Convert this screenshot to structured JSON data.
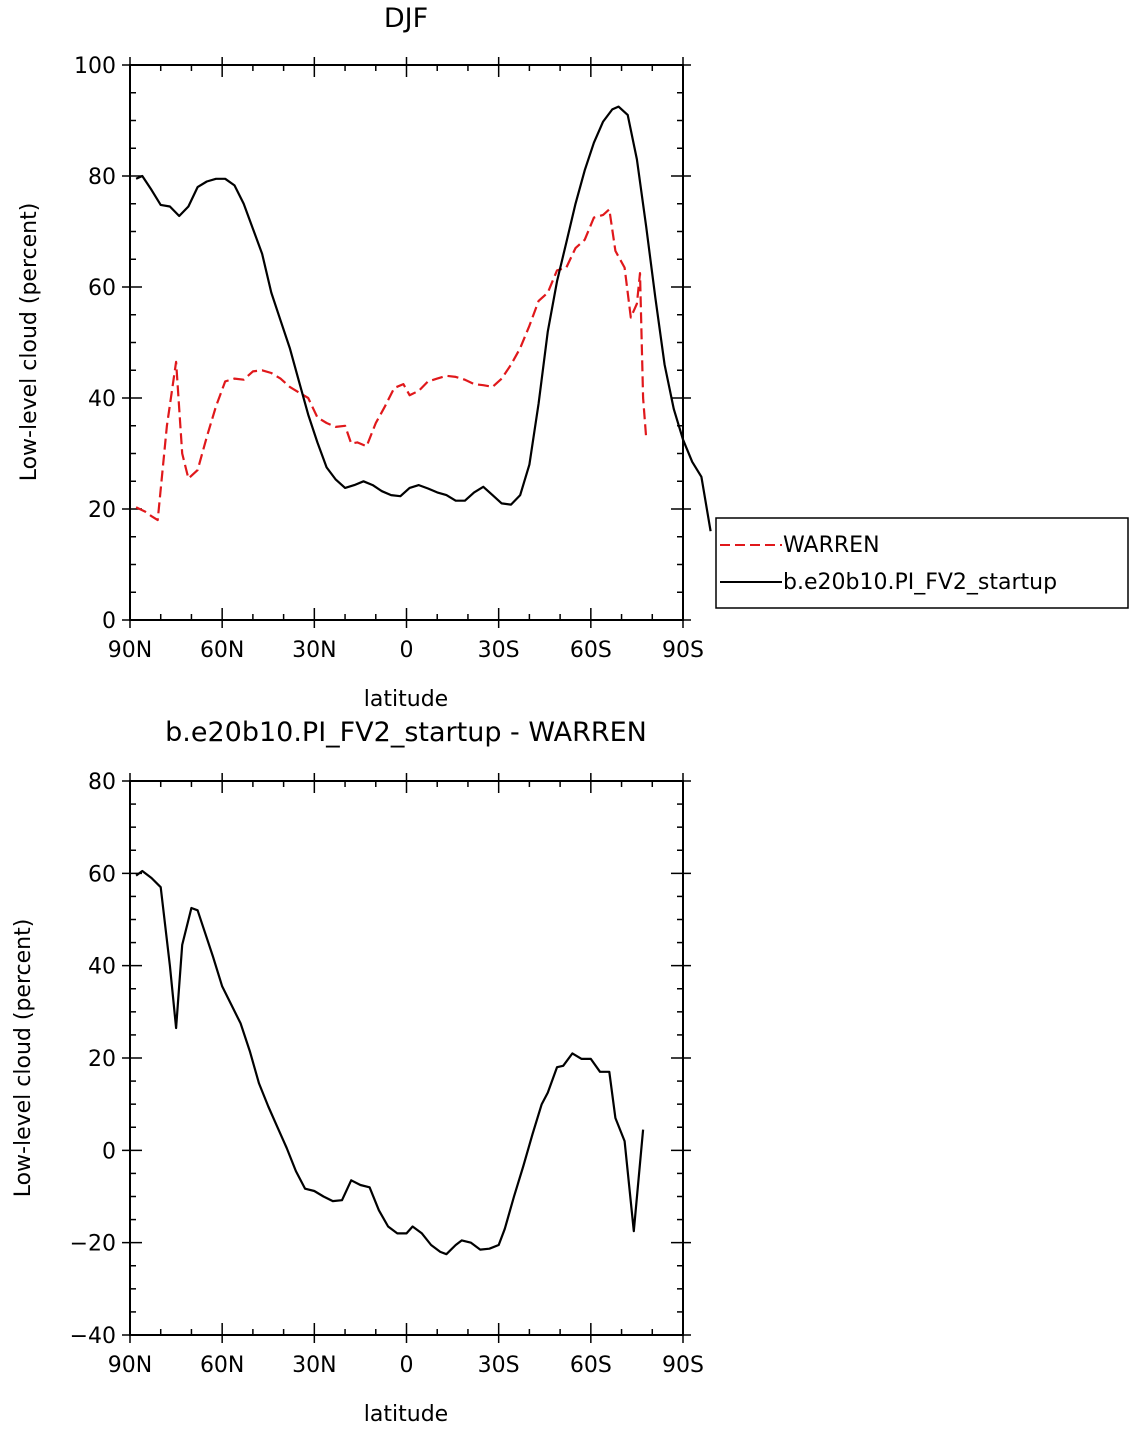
{
  "chart_data": [
    {
      "type": "line",
      "title": "DJF",
      "xlabel": "latitude",
      "ylabel": "Low-level cloud (percent)",
      "xlim": [
        -90,
        90
      ],
      "ylim": [
        0,
        100
      ],
      "xticks": [
        -90,
        -60,
        -30,
        0,
        30,
        60,
        90
      ],
      "xtick_labels": [
        "90N",
        "60N",
        "30N",
        "0",
        "30S",
        "60S",
        "90S"
      ],
      "yticks": [
        0,
        20,
        40,
        60,
        80,
        100
      ],
      "ytick_labels": [
        "0",
        "20",
        "40",
        "60",
        "80",
        "100"
      ],
      "grid": false,
      "legend": {
        "placement": "outside-right",
        "entries": [
          "WARREN",
          "b.e20b10.PI_FV2_startup"
        ]
      },
      "series": [
        {
          "name": "WARREN",
          "color": "#e0181b",
          "dash": "dashed",
          "points": [
            [
              -88,
              20.3
            ],
            [
              -85,
              19.5
            ],
            [
              -83,
              18.7
            ],
            [
              -81,
              18.0
            ],
            [
              -78,
              35.0
            ],
            [
              -75,
              46.5
            ],
            [
              -73,
              30.0
            ],
            [
              -71,
              25.5
            ],
            [
              -68,
              27.0
            ],
            [
              -65,
              33.0
            ],
            [
              -62,
              38.5
            ],
            [
              -59,
              43.0
            ],
            [
              -56,
              43.5
            ],
            [
              -53,
              43.3
            ],
            [
              -50,
              44.8
            ],
            [
              -47,
              45.0
            ],
            [
              -44,
              44.5
            ],
            [
              -41,
              43.5
            ],
            [
              -38,
              42.0
            ],
            [
              -35,
              41.0
            ],
            [
              -32,
              40.0
            ],
            [
              -29,
              36.5
            ],
            [
              -26,
              35.5
            ],
            [
              -23,
              34.8
            ],
            [
              -20,
              35.0
            ],
            [
              -18,
              31.8
            ],
            [
              -16,
              32.0
            ],
            [
              -13,
              31.3
            ],
            [
              -10,
              35.5
            ],
            [
              -7,
              38.5
            ],
            [
              -4,
              41.8
            ],
            [
              -1,
              42.5
            ],
            [
              1,
              40.5
            ],
            [
              4,
              41.3
            ],
            [
              7,
              43.0
            ],
            [
              10,
              43.5
            ],
            [
              13,
              44.0
            ],
            [
              16,
              43.8
            ],
            [
              19,
              43.3
            ],
            [
              22,
              42.5
            ],
            [
              25,
              42.3
            ],
            [
              28,
              42.0
            ],
            [
              31,
              43.5
            ],
            [
              34,
              46.0
            ],
            [
              37,
              49.0
            ],
            [
              40,
              53.0
            ],
            [
              43,
              57.5
            ],
            [
              46,
              59.0
            ],
            [
              49,
              63.0
            ],
            [
              52,
              63.5
            ],
            [
              55,
              67.0
            ],
            [
              58,
              68.5
            ],
            [
              61,
              72.5
            ],
            [
              64,
              73.0
            ],
            [
              66,
              74.0
            ],
            [
              68,
              66.5
            ],
            [
              71,
              63.5
            ],
            [
              73,
              54.5
            ],
            [
              75,
              57.0
            ],
            [
              76,
              62.5
            ],
            [
              77,
              40.0
            ],
            [
              78,
              33.0
            ]
          ]
        },
        {
          "name": "b.e20b10.PI_FV2_startup",
          "color": "#000000",
          "dash": "solid",
          "points": [
            [
              -88,
              79.5
            ],
            [
              -86,
              80.0
            ],
            [
              -83,
              77.5
            ],
            [
              -80,
              74.8
            ],
            [
              -77,
              74.5
            ],
            [
              -74,
              72.8
            ],
            [
              -71,
              74.5
            ],
            [
              -68,
              78.0
            ],
            [
              -65,
              79.0
            ],
            [
              -62,
              79.5
            ],
            [
              -59,
              79.5
            ],
            [
              -56,
              78.3
            ],
            [
              -53,
              75.0
            ],
            [
              -50,
              70.5
            ],
            [
              -47,
              66.0
            ],
            [
              -44,
              59.0
            ],
            [
              -41,
              54.0
            ],
            [
              -38,
              49.0
            ],
            [
              -35,
              43.0
            ],
            [
              -32,
              37.0
            ],
            [
              -29,
              32.0
            ],
            [
              -26,
              27.5
            ],
            [
              -23,
              25.3
            ],
            [
              -20,
              23.8
            ],
            [
              -17,
              24.3
            ],
            [
              -14,
              25.0
            ],
            [
              -11,
              24.3
            ],
            [
              -8,
              23.2
            ],
            [
              -5,
              22.5
            ],
            [
              -2,
              22.3
            ],
            [
              1,
              23.8
            ],
            [
              4,
              24.3
            ],
            [
              7,
              23.7
            ],
            [
              10,
              23.0
            ],
            [
              13,
              22.5
            ],
            [
              16,
              21.5
            ],
            [
              19,
              21.5
            ],
            [
              22,
              23.0
            ],
            [
              25,
              24.0
            ],
            [
              28,
              22.5
            ],
            [
              31,
              21.0
            ],
            [
              34,
              20.8
            ],
            [
              37,
              22.5
            ],
            [
              40,
              28.0
            ],
            [
              43,
              39.0
            ],
            [
              46,
              52.0
            ],
            [
              49,
              61.0
            ],
            [
              52,
              68.0
            ],
            [
              55,
              75.0
            ],
            [
              58,
              81.0
            ],
            [
              61,
              86.0
            ],
            [
              64,
              89.8
            ],
            [
              67,
              92.0
            ],
            [
              69,
              92.5
            ],
            [
              72,
              91.0
            ],
            [
              75,
              83.0
            ],
            [
              78,
              71.0
            ],
            [
              81,
              58.0
            ],
            [
              84,
              46.0
            ],
            [
              87,
              38.0
            ],
            [
              90,
              32.5
            ],
            [
              93,
              28.5
            ],
            [
              96,
              25.8
            ],
            [
              99,
              16.0
            ]
          ]
        }
      ]
    },
    {
      "type": "line",
      "title": "b.e20b10.PI_FV2_startup - WARREN",
      "xlabel": "latitude",
      "ylabel": "Low-level cloud (percent)",
      "xlim": [
        -90,
        90
      ],
      "ylim": [
        -40,
        80
      ],
      "xticks": [
        -90,
        -60,
        -30,
        0,
        30,
        60,
        90
      ],
      "xtick_labels": [
        "90N",
        "60N",
        "30N",
        "0",
        "30S",
        "60S",
        "90S"
      ],
      "yticks": [
        -40,
        -20,
        0,
        20,
        40,
        60,
        80
      ],
      "ytick_labels": [
        "−40",
        "−20",
        "0",
        "20",
        "40",
        "60",
        "80"
      ],
      "grid": false,
      "series": [
        {
          "color": "#000000",
          "dash": "solid",
          "points": [
            [
              -88,
              59.5
            ],
            [
              -86,
              60.5
            ],
            [
              -83,
              59.0
            ],
            [
              -80,
              57.0
            ],
            [
              -77,
              40.0
            ],
            [
              -75,
              26.5
            ],
            [
              -73,
              44.5
            ],
            [
              -70,
              52.5
            ],
            [
              -68,
              52.0
            ],
            [
              -66,
              48.0
            ],
            [
              -63,
              42.0
            ],
            [
              -60,
              35.5
            ],
            [
              -57,
              31.5
            ],
            [
              -54,
              27.5
            ],
            [
              -51,
              21.5
            ],
            [
              -48,
              14.5
            ],
            [
              -45,
              9.5
            ],
            [
              -42,
              5.0
            ],
            [
              -39,
              0.5
            ],
            [
              -36,
              -4.5
            ],
            [
              -33,
              -8.3
            ],
            [
              -30,
              -8.8
            ],
            [
              -27,
              -10.0
            ],
            [
              -24,
              -11.0
            ],
            [
              -21,
              -10.8
            ],
            [
              -18,
              -6.5
            ],
            [
              -15,
              -7.5
            ],
            [
              -12,
              -8.0
            ],
            [
              -9,
              -13.0
            ],
            [
              -6,
              -16.5
            ],
            [
              -3,
              -18.0
            ],
            [
              0,
              -18.0
            ],
            [
              2,
              -16.5
            ],
            [
              5,
              -18.0
            ],
            [
              8,
              -20.5
            ],
            [
              11,
              -22.0
            ],
            [
              13,
              -22.5
            ],
            [
              16,
              -20.5
            ],
            [
              18,
              -19.5
            ],
            [
              21,
              -20.0
            ],
            [
              24,
              -21.5
            ],
            [
              27,
              -21.3
            ],
            [
              30,
              -20.5
            ],
            [
              32,
              -17.0
            ],
            [
              35,
              -10.0
            ],
            [
              38,
              -3.5
            ],
            [
              41,
              3.5
            ],
            [
              44,
              10.0
            ],
            [
              46,
              12.5
            ],
            [
              49,
              18.0
            ],
            [
              51,
              18.3
            ],
            [
              54,
              21.0
            ],
            [
              57,
              19.8
            ],
            [
              60,
              19.8
            ],
            [
              63,
              17.0
            ],
            [
              66,
              17.0
            ],
            [
              68,
              7.0
            ],
            [
              71,
              2.0
            ],
            [
              74,
              -17.5
            ],
            [
              77,
              4.5
            ]
          ]
        }
      ]
    }
  ]
}
